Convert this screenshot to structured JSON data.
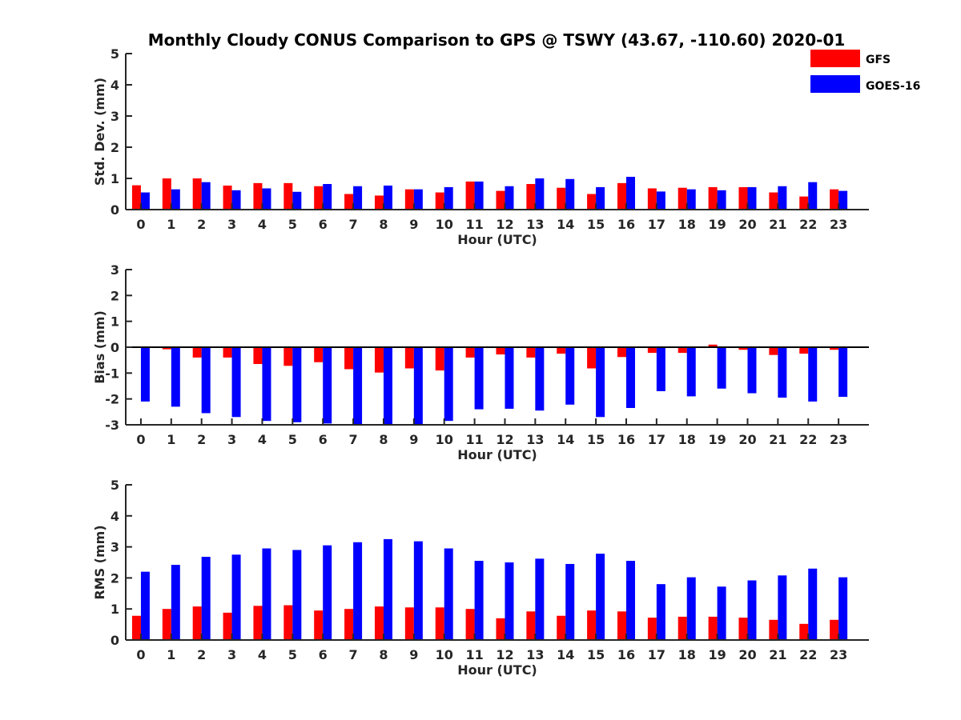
{
  "figure_title": "Monthly Cloudy CONUS Comparison to GPS @ TSWY (43.67, -110.60) 2020-01",
  "legend": [
    {
      "label": "GFS",
      "color": "#ff0000"
    },
    {
      "label": "GOES-16",
      "color": "#0000ff"
    }
  ],
  "chart_data": [
    {
      "type": "bar",
      "title": "Monthly Cloudy CONUS Comparison to GPS @ TSWY (43.67, -110.60) 2020-01",
      "xlabel": "Hour (UTC)",
      "ylabel": "Std. Dev. (mm)",
      "ylim": [
        0,
        5
      ],
      "yticks": [
        0,
        1,
        2,
        3,
        4,
        5
      ],
      "categories": [
        "0",
        "1",
        "2",
        "3",
        "4",
        "5",
        "6",
        "7",
        "8",
        "9",
        "10",
        "11",
        "12",
        "13",
        "14",
        "15",
        "16",
        "17",
        "18",
        "19",
        "20",
        "21",
        "22",
        "23"
      ],
      "series": [
        {
          "name": "GFS",
          "color": "#ff0000",
          "values": [
            0.78,
            1.0,
            1.0,
            0.77,
            0.85,
            0.85,
            0.75,
            0.5,
            0.45,
            0.65,
            0.55,
            0.9,
            0.6,
            0.82,
            0.7,
            0.5,
            0.85,
            0.68,
            0.7,
            0.72,
            0.72,
            0.55,
            0.42,
            0.65
          ]
        },
        {
          "name": "GOES-16",
          "color": "#0000ff",
          "values": [
            0.55,
            0.65,
            0.88,
            0.62,
            0.68,
            0.57,
            0.82,
            0.75,
            0.77,
            0.65,
            0.72,
            0.9,
            0.75,
            1.0,
            0.98,
            0.72,
            1.05,
            0.58,
            0.65,
            0.62,
            0.72,
            0.75,
            0.88,
            0.6
          ]
        }
      ],
      "legend_position": "top-right"
    },
    {
      "type": "bar",
      "xlabel": "Hour (UTC)",
      "ylabel": "Bias (mm)",
      "ylim": [
        -3,
        3
      ],
      "yticks": [
        -3,
        -2,
        -1,
        0,
        1,
        2,
        3
      ],
      "categories": [
        "0",
        "1",
        "2",
        "3",
        "4",
        "5",
        "6",
        "7",
        "8",
        "9",
        "10",
        "11",
        "12",
        "13",
        "14",
        "15",
        "16",
        "17",
        "18",
        "19",
        "20",
        "21",
        "22",
        "23"
      ],
      "series": [
        {
          "name": "GFS",
          "color": "#ff0000",
          "values": [
            0.0,
            -0.08,
            -0.4,
            -0.4,
            -0.65,
            -0.72,
            -0.58,
            -0.85,
            -0.98,
            -0.82,
            -0.9,
            -0.4,
            -0.28,
            -0.4,
            -0.25,
            -0.82,
            -0.38,
            -0.22,
            -0.22,
            0.1,
            -0.1,
            -0.3,
            -0.25,
            -0.1
          ]
        },
        {
          "name": "GOES-16",
          "color": "#0000ff",
          "values": [
            -2.1,
            -2.3,
            -2.55,
            -2.7,
            -2.85,
            -2.9,
            -2.95,
            -3.0,
            -3.0,
            -3.0,
            -2.85,
            -2.4,
            -2.38,
            -2.45,
            -2.22,
            -2.7,
            -2.35,
            -1.7,
            -1.9,
            -1.6,
            -1.78,
            -1.95,
            -2.1,
            -1.92
          ]
        }
      ]
    },
    {
      "type": "bar",
      "xlabel": "Hour (UTC)",
      "ylabel": "RMS (mm)",
      "ylim": [
        0,
        5
      ],
      "yticks": [
        0,
        1,
        2,
        3,
        4,
        5
      ],
      "categories": [
        "0",
        "1",
        "2",
        "3",
        "4",
        "5",
        "6",
        "7",
        "8",
        "9",
        "10",
        "11",
        "12",
        "13",
        "14",
        "15",
        "16",
        "17",
        "18",
        "19",
        "20",
        "21",
        "22",
        "23"
      ],
      "series": [
        {
          "name": "GFS",
          "color": "#ff0000",
          "values": [
            0.78,
            1.0,
            1.08,
            0.88,
            1.1,
            1.12,
            0.95,
            1.0,
            1.08,
            1.05,
            1.05,
            1.0,
            0.7,
            0.92,
            0.78,
            0.95,
            0.92,
            0.72,
            0.75,
            0.75,
            0.72,
            0.65,
            0.52,
            0.65
          ]
        },
        {
          "name": "GOES-16",
          "color": "#0000ff",
          "values": [
            2.2,
            2.42,
            2.68,
            2.75,
            2.95,
            2.9,
            3.05,
            3.15,
            3.25,
            3.18,
            2.95,
            2.55,
            2.5,
            2.62,
            2.45,
            2.78,
            2.55,
            1.8,
            2.02,
            1.72,
            1.92,
            2.08,
            2.3,
            2.02
          ]
        }
      ]
    }
  ]
}
